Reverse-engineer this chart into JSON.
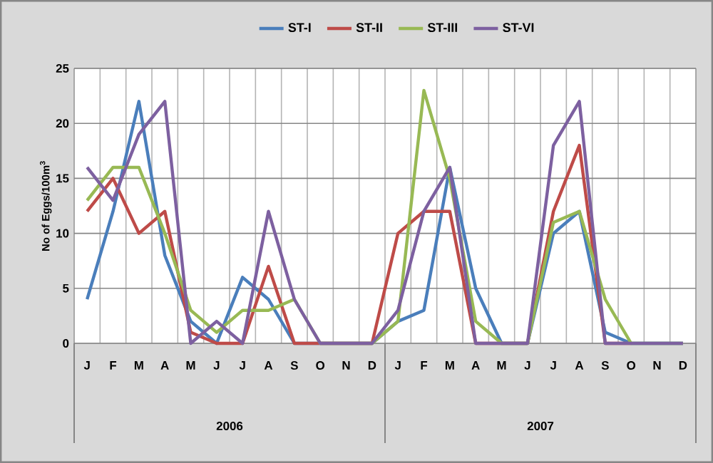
{
  "chart_data": {
    "type": "line",
    "ylabel": "No of Eggs/100m$^{3}$",
    "categories": [
      "J",
      "F",
      "M",
      "A",
      "M",
      "J",
      "J",
      "A",
      "S",
      "O",
      "N",
      "D",
      "J",
      "F",
      "M",
      "A",
      "M",
      "J",
      "J",
      "A",
      "S",
      "O",
      "N",
      "D"
    ],
    "annotations": [
      "2006",
      "2007"
    ],
    "series": [
      {
        "name": "ST-I",
        "color": "#4a7ebb",
        "values": [
          4,
          12,
          22,
          8,
          2,
          0,
          6,
          4,
          0,
          0,
          0,
          0,
          2,
          3,
          16,
          5,
          0,
          0,
          10,
          12,
          1,
          0,
          0,
          0
        ]
      },
      {
        "name": "ST-II",
        "color": "#be4b48",
        "values": [
          12,
          15,
          10,
          12,
          1,
          0,
          0,
          7,
          0,
          0,
          0,
          0,
          10,
          12,
          12,
          0,
          0,
          0,
          12,
          18,
          0,
          0,
          null,
          null
        ]
      },
      {
        "name": "ST-III",
        "color": "#98b954",
        "values": [
          13,
          16,
          16,
          10,
          3,
          1,
          3,
          3,
          4,
          0,
          0,
          0,
          2,
          23,
          15,
          2,
          0,
          0,
          11,
          12,
          4,
          0,
          0,
          0
        ]
      },
      {
        "name": "ST-VI",
        "color": "#7d60a0",
        "values": [
          16,
          13,
          19,
          22,
          0,
          2,
          0,
          12,
          4,
          0,
          0,
          0,
          3,
          12,
          16,
          0,
          0,
          0,
          18,
          22,
          0,
          0,
          0,
          0
        ]
      }
    ],
    "ylim": [
      0,
      25
    ],
    "yticks": [
      0,
      5,
      10,
      15,
      20,
      25
    ],
    "grid": true,
    "legend": "top",
    "marker": "none",
    "line_style": "solid"
  }
}
